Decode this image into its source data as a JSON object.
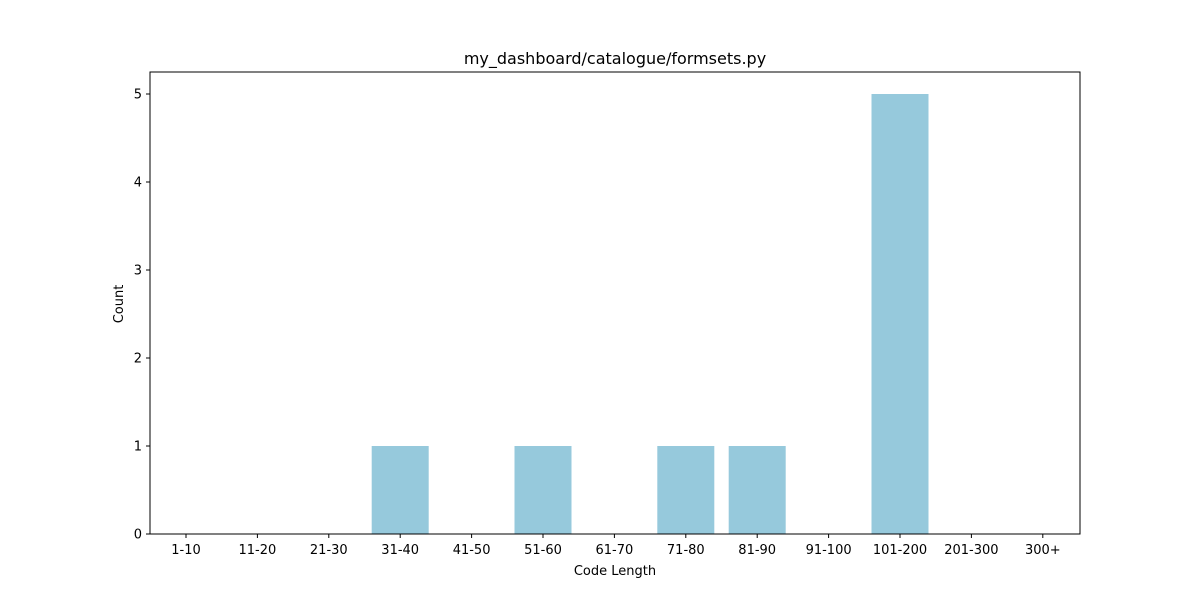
{
  "chart_data": {
    "type": "bar",
    "title": "my_dashboard/catalogue/formsets.py",
    "xlabel": "Code Length",
    "ylabel": "Count",
    "categories": [
      "1-10",
      "11-20",
      "21-30",
      "31-40",
      "41-50",
      "51-60",
      "61-70",
      "71-80",
      "81-90",
      "91-100",
      "101-200",
      "201-300",
      "300+"
    ],
    "values": [
      0,
      0,
      0,
      1,
      0,
      1,
      0,
      1,
      1,
      0,
      5,
      0,
      0
    ],
    "ylim": [
      0,
      5.25
    ],
    "yticks": [
      0,
      1,
      2,
      3,
      4,
      5
    ],
    "grid": false,
    "bar_color": "#96c9dc"
  }
}
